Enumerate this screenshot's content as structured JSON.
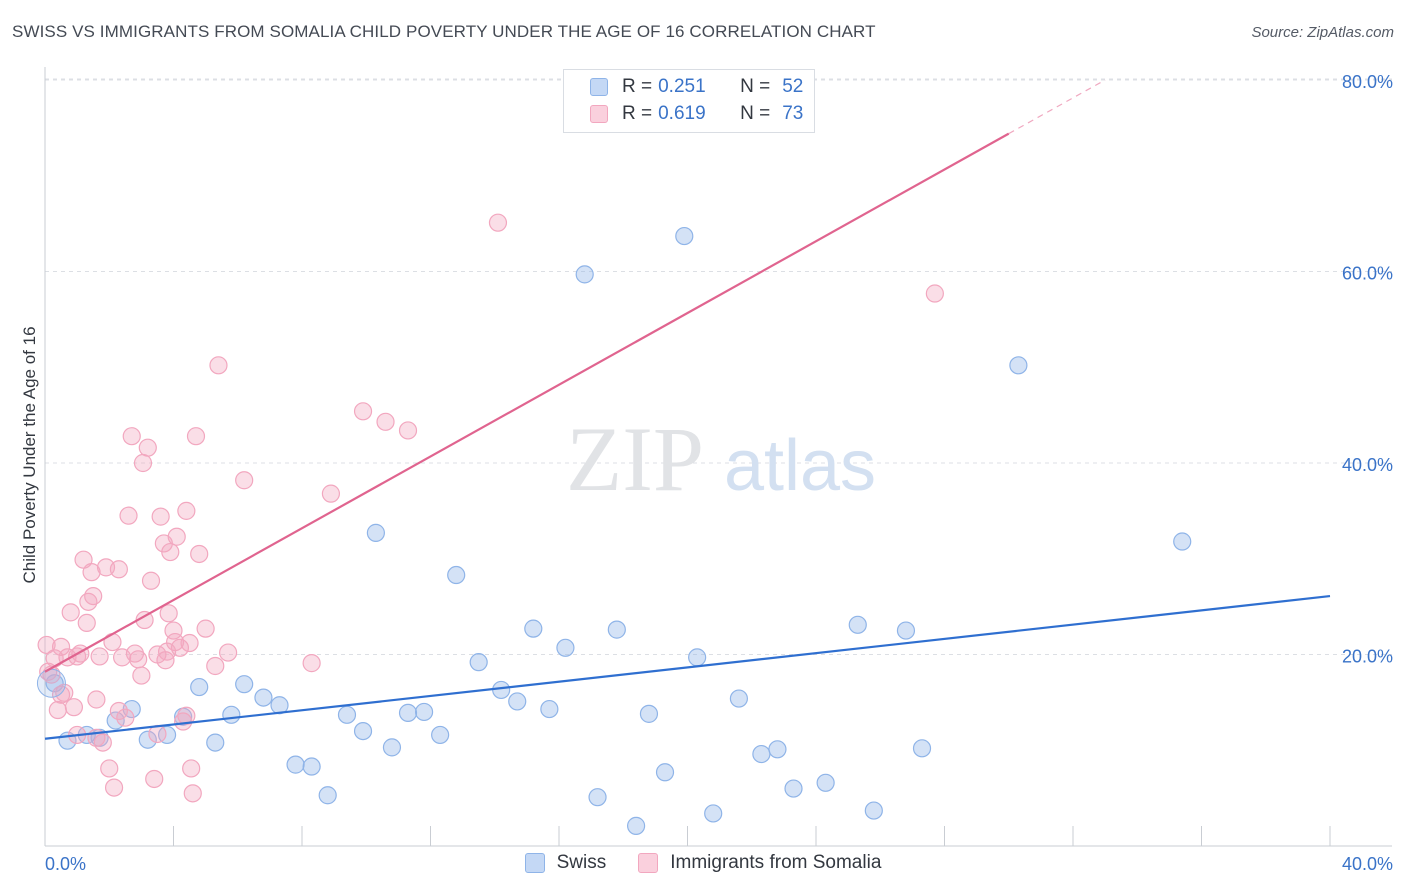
{
  "header": {
    "title": "SWISS VS IMMIGRANTS FROM SOMALIA CHILD POVERTY UNDER THE AGE OF 16 CORRELATION CHART",
    "source": "Source: ZipAtlas.com"
  },
  "watermark": {
    "zip": "ZIP",
    "atlas": "atlas"
  },
  "legend": {
    "rows": [
      {
        "r_label": "R =",
        "r_value": "0.251",
        "n_label": "N =",
        "n_value": "52",
        "color": "#8fb4e8"
      },
      {
        "r_label": "R =",
        "r_value": "0.619",
        "n_label": "N =",
        "n_value": "73",
        "color": "#f2a7bf"
      }
    ]
  },
  "chart_data": {
    "type": "scatter",
    "title": "SWISS VS IMMIGRANTS FROM SOMALIA CHILD POVERTY UNDER THE AGE OF 16 CORRELATION CHART",
    "xlabel": "",
    "ylabel": "Child Poverty Under the Age of 16",
    "xlim": [
      0,
      40
    ],
    "ylim": [
      0,
      80
    ],
    "x_tick_labels": [
      "0.0%",
      "40.0%"
    ],
    "y_ticks": [
      20,
      40,
      60,
      80
    ],
    "y_tick_labels": [
      "20.0%",
      "40.0%",
      "60.0%",
      "80.0%"
    ],
    "grid": true,
    "legend_position": "top-center",
    "series": [
      {
        "name": "Swiss",
        "color": "#8fb4e8",
        "line_color": "#2f6fd0",
        "trend": {
          "x0": 0,
          "y0": 11.2,
          "x1": 40,
          "y1": 26.1
        },
        "points": [
          [
            0.3,
            17
          ],
          [
            0.7,
            11
          ],
          [
            1.3,
            11.6
          ],
          [
            1.7,
            11.3
          ],
          [
            2.2,
            13.1
          ],
          [
            2.7,
            14.3
          ],
          [
            3.2,
            11.1
          ],
          [
            3.8,
            11.6
          ],
          [
            4.3,
            13.5
          ],
          [
            4.8,
            16.6
          ],
          [
            5.3,
            10.8
          ],
          [
            5.8,
            13.7
          ],
          [
            6.2,
            16.9
          ],
          [
            6.8,
            15.5
          ],
          [
            7.3,
            14.7
          ],
          [
            7.8,
            8.5
          ],
          [
            8.3,
            8.3
          ],
          [
            8.8,
            5.3
          ],
          [
            9.4,
            13.7
          ],
          [
            9.9,
            12
          ],
          [
            10.3,
            32.7
          ],
          [
            10.8,
            10.3
          ],
          [
            11.3,
            13.9
          ],
          [
            11.8,
            14
          ],
          [
            12.3,
            11.6
          ],
          [
            12.8,
            28.3
          ],
          [
            13.5,
            19.2
          ],
          [
            14.2,
            16.3
          ],
          [
            14.7,
            15.1
          ],
          [
            15.2,
            22.7
          ],
          [
            15.7,
            14.3
          ],
          [
            16.2,
            20.7
          ],
          [
            16.8,
            59.7
          ],
          [
            17.2,
            5.1
          ],
          [
            17.8,
            22.6
          ],
          [
            18.4,
            2.1
          ],
          [
            18.8,
            13.8
          ],
          [
            19.3,
            7.7
          ],
          [
            19.9,
            63.7
          ],
          [
            20.3,
            19.7
          ],
          [
            20.8,
            3.4
          ],
          [
            21.6,
            15.4
          ],
          [
            22.3,
            9.6
          ],
          [
            22.8,
            10.1
          ],
          [
            23.3,
            6
          ],
          [
            24.3,
            6.6
          ],
          [
            25.3,
            23.1
          ],
          [
            25.8,
            3.7
          ],
          [
            26.8,
            22.5
          ],
          [
            27.3,
            10.2
          ],
          [
            30.3,
            50.2
          ],
          [
            35.4,
            31.8
          ]
        ]
      },
      {
        "name": "Immigrants from Somalia",
        "color": "#f2a7bf",
        "line_color": "#e0648f",
        "trend": {
          "x0": 0,
          "y0": 18.2,
          "x1": 30.0,
          "y1": 74.4,
          "dashed_to_x": 33.0,
          "dashed_to_y": 80
        },
        "points": [
          [
            0.05,
            21
          ],
          [
            0.1,
            18.2
          ],
          [
            0.2,
            17.9
          ],
          [
            0.4,
            14.2
          ],
          [
            0.5,
            20.8
          ],
          [
            0.6,
            16
          ],
          [
            0.7,
            19.7
          ],
          [
            0.8,
            24.4
          ],
          [
            0.9,
            14.5
          ],
          [
            1.0,
            19.8
          ],
          [
            1.1,
            20.1
          ],
          [
            1.2,
            29.9
          ],
          [
            1.3,
            23.3
          ],
          [
            1.35,
            25.5
          ],
          [
            1.45,
            28.6
          ],
          [
            1.5,
            26.1
          ],
          [
            1.6,
            15.3
          ],
          [
            1.7,
            19.8
          ],
          [
            1.8,
            10.8
          ],
          [
            1.9,
            29.1
          ],
          [
            2.0,
            8.1
          ],
          [
            2.1,
            21.3
          ],
          [
            2.15,
            6.1
          ],
          [
            2.3,
            28.9
          ],
          [
            2.4,
            19.7
          ],
          [
            2.5,
            13.4
          ],
          [
            2.6,
            34.5
          ],
          [
            2.7,
            42.8
          ],
          [
            2.8,
            20.1
          ],
          [
            2.9,
            19.5
          ],
          [
            3.0,
            17.8
          ],
          [
            3.05,
            40
          ],
          [
            3.1,
            23.6
          ],
          [
            3.2,
            41.6
          ],
          [
            3.3,
            27.7
          ],
          [
            3.4,
            7
          ],
          [
            3.5,
            11.7
          ],
          [
            3.6,
            34.4
          ],
          [
            3.7,
            31.6
          ],
          [
            3.75,
            19.4
          ],
          [
            3.8,
            20.3
          ],
          [
            3.85,
            24.3
          ],
          [
            3.9,
            30.7
          ],
          [
            4.0,
            22.5
          ],
          [
            4.05,
            21.3
          ],
          [
            4.1,
            32.3
          ],
          [
            4.2,
            20.7
          ],
          [
            4.3,
            13
          ],
          [
            4.4,
            35
          ],
          [
            4.5,
            21.2
          ],
          [
            4.55,
            8.1
          ],
          [
            4.6,
            5.5
          ],
          [
            4.7,
            42.8
          ],
          [
            4.8,
            30.5
          ],
          [
            5.0,
            22.7
          ],
          [
            5.3,
            18.8
          ],
          [
            5.4,
            50.2
          ],
          [
            5.7,
            20.2
          ],
          [
            6.2,
            38.2
          ],
          [
            8.3,
            19.1
          ],
          [
            8.9,
            36.8
          ],
          [
            9.9,
            45.4
          ],
          [
            10.6,
            44.3
          ],
          [
            11.3,
            43.4
          ],
          [
            14.1,
            65.1
          ],
          [
            27.7,
            57.7
          ],
          [
            0.3,
            19.6
          ],
          [
            0.5,
            15.8
          ],
          [
            1.0,
            11.6
          ],
          [
            1.6,
            11.3
          ],
          [
            2.3,
            14.1
          ],
          [
            3.5,
            20
          ],
          [
            4.4,
            13.6
          ]
        ]
      }
    ]
  },
  "bottom_legend": [
    {
      "label": "Swiss",
      "color": "#8fb4e8"
    },
    {
      "label": "Immigrants from Somalia",
      "color": "#f2a7bf"
    }
  ]
}
